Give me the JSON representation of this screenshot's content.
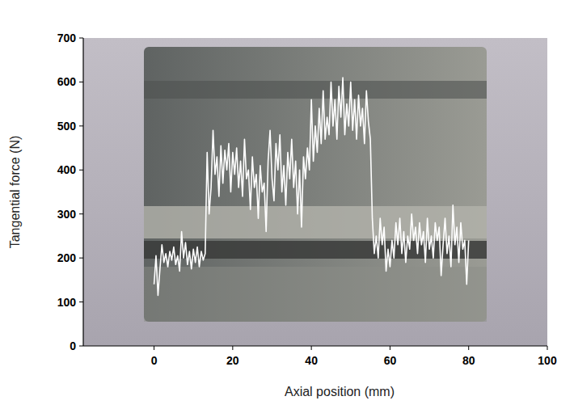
{
  "chart_data": {
    "type": "line",
    "x_label": "Axial position (mm)",
    "y_label": "Tangential force (N)",
    "xlim": [
      -18,
      100
    ],
    "ylim": [
      0,
      700
    ],
    "xticks": [
      0,
      20,
      40,
      60,
      80,
      100
    ],
    "yticks": [
      0,
      100,
      200,
      300,
      400,
      500,
      600,
      700
    ],
    "grid": false,
    "color": "#ffffff",
    "x": [
      0,
      0.5,
      1,
      1.5,
      2,
      2.5,
      3,
      3.5,
      4,
      4.5,
      5,
      5.5,
      6,
      6.5,
      7,
      7.5,
      8,
      8.5,
      9,
      9.5,
      10,
      10.5,
      11,
      11.5,
      12,
      12.5,
      13,
      13.5,
      14,
      14.5,
      15,
      15.5,
      16,
      16.5,
      17,
      17.5,
      18,
      18.5,
      19,
      19.5,
      20,
      20.5,
      21,
      21.5,
      22,
      22.5,
      23,
      23.5,
      24,
      24.5,
      25,
      25.5,
      26,
      26.5,
      27,
      27.5,
      28,
      28.5,
      29,
      29.5,
      30,
      30.5,
      31,
      31.5,
      32,
      32.5,
      33,
      33.5,
      34,
      34.5,
      35,
      35.5,
      36,
      36.5,
      37,
      37.5,
      38,
      38.5,
      39,
      39.5,
      40,
      40.5,
      41,
      41.5,
      42,
      42.5,
      43,
      43.5,
      44,
      44.5,
      45,
      45.5,
      46,
      46.5,
      47,
      47.5,
      48,
      48.5,
      49,
      49.5,
      50,
      50.5,
      51,
      51.5,
      52,
      52.5,
      53,
      53.5,
      54,
      54.5,
      55,
      55.5,
      56,
      56.5,
      57,
      57.5,
      58,
      58.5,
      59,
      59.5,
      60,
      60.5,
      61,
      61.5,
      62,
      62.5,
      63,
      63.5,
      64,
      64.5,
      65,
      65.5,
      66,
      66.5,
      67,
      67.5,
      68,
      68.5,
      69,
      69.5,
      70,
      70.5,
      71,
      71.5,
      72,
      72.5,
      73,
      73.5,
      74,
      74.5,
      75,
      75.5,
      76,
      76.5,
      77,
      77.5,
      78,
      78.5,
      79,
      79.5,
      80
    ],
    "values": [
      140,
      205,
      115,
      175,
      230,
      190,
      210,
      180,
      215,
      195,
      225,
      185,
      205,
      170,
      260,
      200,
      235,
      185,
      215,
      175,
      220,
      190,
      225,
      180,
      215,
      195,
      210,
      440,
      300,
      360,
      490,
      390,
      430,
      340,
      455,
      370,
      445,
      400,
      460,
      350,
      440,
      390,
      450,
      360,
      420,
      340,
      470,
      380,
      400,
      310,
      430,
      360,
      390,
      290,
      410,
      350,
      370,
      260,
      420,
      490,
      380,
      330,
      460,
      400,
      480,
      350,
      410,
      320,
      440,
      380,
      470,
      360,
      420,
      300,
      400,
      270,
      430,
      380,
      450,
      400,
      560,
      420,
      500,
      440,
      540,
      460,
      580,
      470,
      520,
      480,
      600,
      500,
      560,
      470,
      590,
      520,
      610,
      480,
      550,
      500,
      600,
      490,
      560,
      470,
      570,
      500,
      540,
      460,
      580,
      510,
      470,
      290,
      210,
      250,
      200,
      290,
      230,
      270,
      170,
      220,
      180,
      240,
      200,
      280,
      230,
      290,
      210,
      260,
      190,
      250,
      220,
      300,
      240,
      270,
      210,
      280,
      230,
      260,
      190,
      290,
      220,
      250,
      200,
      280,
      240,
      270,
      160,
      230,
      290,
      210,
      250,
      180,
      320,
      230,
      270,
      190,
      280,
      220,
      240,
      140,
      240
    ]
  }
}
